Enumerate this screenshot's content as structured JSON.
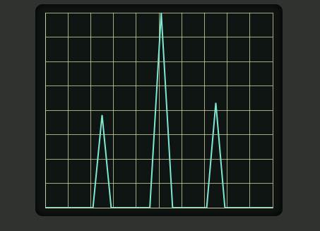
{
  "chart_data": {
    "type": "line",
    "x": [
      0,
      2.1,
      2.5,
      2.9,
      4.6,
      5.1,
      5.6,
      7.1,
      7.5,
      7.9,
      10
    ],
    "values": [
      0,
      0,
      3.8,
      0,
      0,
      8,
      0,
      0,
      4.3,
      0,
      0
    ],
    "color": "#7fe8d0",
    "xlim": [
      0,
      10
    ],
    "xticks": [
      0,
      1,
      2,
      3,
      4,
      5,
      6,
      7,
      8,
      9,
      10
    ],
    "ylim": [
      0,
      8
    ],
    "yticks": [
      0,
      1,
      2,
      3,
      4,
      5,
      6,
      7,
      8
    ],
    "grid": true,
    "tick_labels": false
  }
}
